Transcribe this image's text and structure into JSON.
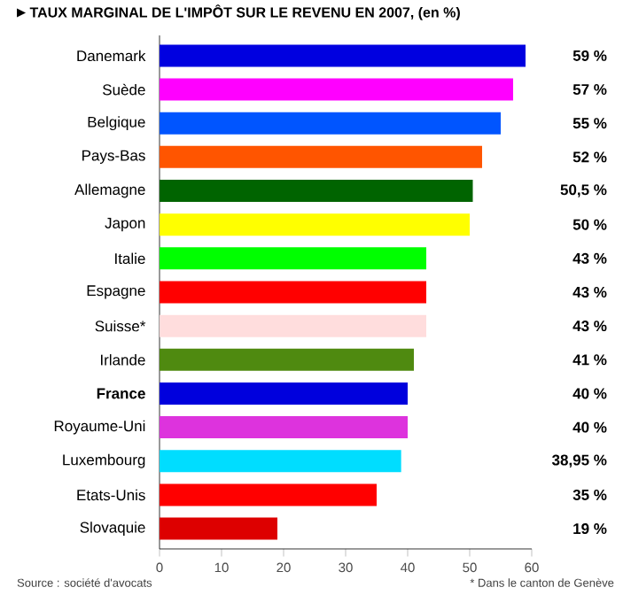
{
  "chart_data": {
    "type": "bar",
    "orientation": "horizontal",
    "title": "TAUX MARGINAL DE L'IMPÔT SUR LE REVENU EN 2007, (en %)",
    "categories": [
      "Danemark",
      "Suède",
      "Belgique",
      "Pays-Bas",
      "Allemagne",
      "Japon",
      "Italie",
      "Espagne",
      "Suisse*",
      "Irlande",
      "**France**",
      "Royaume-Uni",
      "Luxembourg",
      "Etats-Unis",
      "Slovaquie"
    ],
    "values": [
      59,
      57,
      55,
      52,
      50.5,
      50,
      43,
      43,
      43,
      41,
      40,
      40,
      38.95,
      35,
      19
    ],
    "value_labels": [
      "59 %",
      "57 %",
      "55 %",
      "52 %",
      "50,5 %",
      "50 %",
      "43 %",
      "43 %",
      "43 %",
      "41 %",
      "40 %",
      "40 %",
      "38,95 %",
      "35 %",
      "19 %"
    ],
    "colors": [
      "#0000e0",
      "#ff00ff",
      "#0055ff",
      "#ff5500",
      "#006400",
      "#ffff00",
      "#00ff00",
      "#ff0000",
      "#ffdddd",
      "#4f8a10",
      "#0000dd",
      "#dd33dd",
      "#00ddff",
      "#ff0000",
      "#dd0000"
    ],
    "xlim": [
      0,
      60
    ],
    "xticks": [
      0,
      10,
      20,
      30,
      40,
      50,
      60
    ],
    "annotations": [
      "Source : société d'avocats",
      "* Dans le canton de Genève"
    ]
  }
}
